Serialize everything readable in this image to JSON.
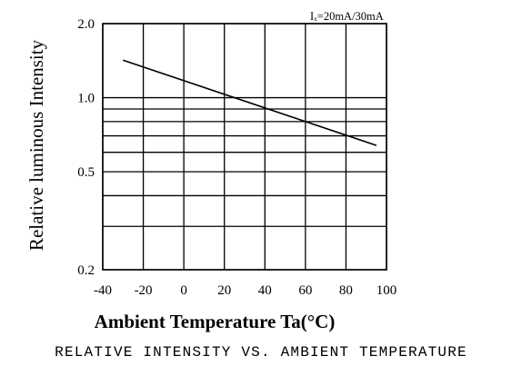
{
  "chart_data": {
    "type": "line",
    "title": "",
    "annotation": "Iₓ=20mA/30mA",
    "caption": "RELATIVE INTENSITY VS. AMBIENT TEMPERATURE",
    "xlabel": "Ambient Temperature Ta(°C)",
    "ylabel": "Relative luminous Intensity",
    "xlim": [
      -40,
      100
    ],
    "ylim": [
      0.2,
      2.0
    ],
    "yscale": "log",
    "grid": true,
    "x_ticks": [
      -40,
      -20,
      0,
      20,
      40,
      60,
      80,
      100
    ],
    "x_gridlines": [
      -40,
      -20,
      0,
      20,
      40,
      60,
      80,
      100
    ],
    "y_ticks": [
      0.2,
      0.5,
      1.0,
      2.0
    ],
    "y_gridlines": [
      0.2,
      0.3,
      0.4,
      0.5,
      0.6,
      0.7,
      0.8,
      0.9,
      1.0,
      2.0
    ],
    "series": [
      {
        "name": "",
        "color": "#000000",
        "x": [
          -30,
          95
        ],
        "y": [
          1.42,
          0.64
        ]
      }
    ]
  }
}
